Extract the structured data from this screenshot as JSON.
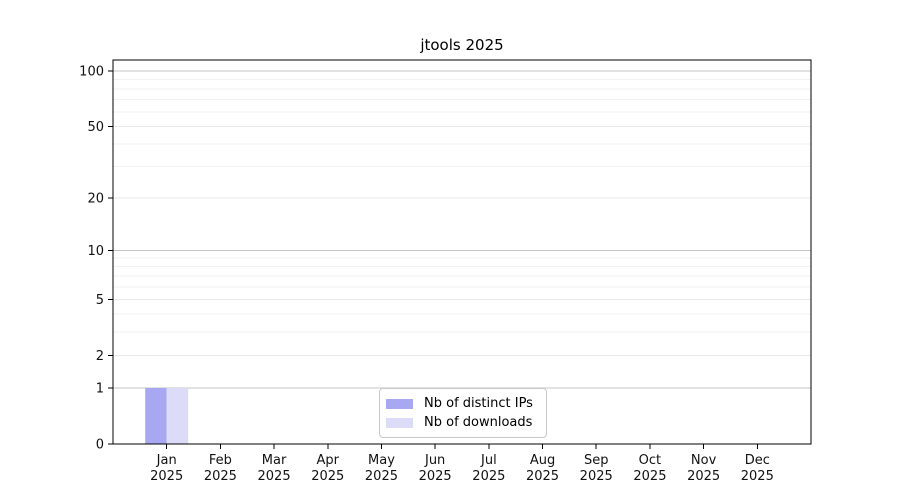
{
  "chart_data": {
    "type": "bar",
    "title": "jtools 2025",
    "categories": [
      {
        "label": "Jan",
        "sublabel": "2025"
      },
      {
        "label": "Feb",
        "sublabel": "2025"
      },
      {
        "label": "Mar",
        "sublabel": "2025"
      },
      {
        "label": "Apr",
        "sublabel": "2025"
      },
      {
        "label": "May",
        "sublabel": "2025"
      },
      {
        "label": "Jun",
        "sublabel": "2025"
      },
      {
        "label": "Jul",
        "sublabel": "2025"
      },
      {
        "label": "Aug",
        "sublabel": "2025"
      },
      {
        "label": "Sep",
        "sublabel": "2025"
      },
      {
        "label": "Oct",
        "sublabel": "2025"
      },
      {
        "label": "Nov",
        "sublabel": "2025"
      },
      {
        "label": "Dec",
        "sublabel": "2025"
      }
    ],
    "series": [
      {
        "name": "Nb of distinct IPs",
        "color": "#a8a8f2",
        "values": [
          1,
          0,
          0,
          0,
          0,
          0,
          0,
          0,
          0,
          0,
          0,
          0
        ]
      },
      {
        "name": "Nb of downloads",
        "color": "#dcdcf8",
        "values": [
          1,
          0,
          0,
          0,
          0,
          0,
          0,
          0,
          0,
          0,
          0,
          0
        ]
      }
    ],
    "y_scale": "log1p",
    "ylim": [
      0,
      115
    ],
    "y_ticks": [
      0,
      1,
      2,
      5,
      10,
      20,
      50,
      100
    ],
    "y_minor_ticks": [
      3,
      4,
      6,
      7,
      8,
      9,
      30,
      40,
      60,
      70,
      80,
      90
    ],
    "y_decade_lines": [
      1,
      10,
      100
    ],
    "grid": true,
    "legend_position": "lower center",
    "colors": {
      "axis": "#000000",
      "text": "#111111",
      "grid_decade": "#c4c4c4",
      "grid_major": "#eaeaea",
      "grid_minor": "#f2f2f2"
    }
  }
}
